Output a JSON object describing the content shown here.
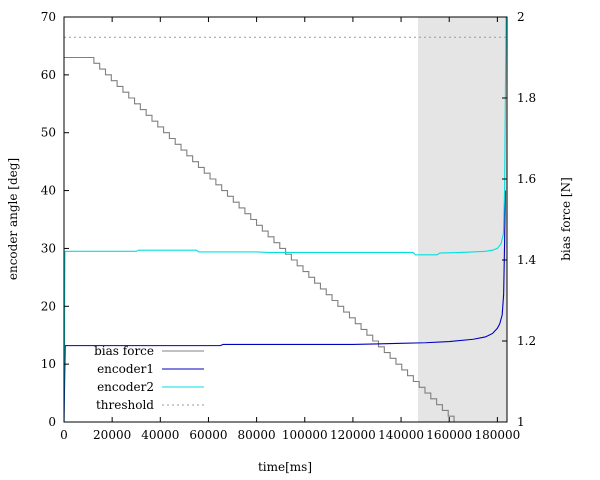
{
  "chart_data": {
    "type": "line",
    "title": "",
    "xlabel": "time[ms]",
    "ylabel_left": "encoder angle [deg]",
    "ylabel_right": "bias force [N]",
    "xlim": [
      0,
      184000
    ],
    "ylim_left": [
      0,
      70
    ],
    "ylim_right": [
      1,
      2
    ],
    "x_ticks": [
      0,
      20000,
      40000,
      60000,
      80000,
      100000,
      120000,
      140000,
      160000,
      180000
    ],
    "y_left_ticks": [
      0,
      10,
      20,
      30,
      40,
      50,
      60,
      70
    ],
    "y_right_ticks": [
      1,
      1.2,
      1.4,
      1.6,
      1.8,
      2
    ],
    "y_right_tick_labels": [
      "1",
      "1.2",
      "1.4",
      "1.6",
      "1.8",
      "2"
    ],
    "shaded_region": {
      "x": [
        147000,
        184000
      ],
      "color": "#e5e5e5"
    },
    "legend_position": "bottom-left",
    "series": [
      {
        "name": "bias force",
        "axis": "left",
        "color": "#808080",
        "style": "step",
        "x": [
          0,
          10000,
          162000
        ],
        "y": [
          63,
          63,
          0
        ]
      },
      {
        "name": "encoder1",
        "axis": "left",
        "color": "#0000c0",
        "style": "line",
        "x": [
          0,
          500,
          1000,
          65000,
          66000,
          120000,
          140000,
          150000,
          160000,
          170000,
          175000,
          178000,
          180000,
          181000,
          182000,
          182600,
          183000,
          183300
        ],
        "y": [
          0,
          13.2,
          13.2,
          13.2,
          13.4,
          13.4,
          13.6,
          13.7,
          13.9,
          14.3,
          14.7,
          15.3,
          16.2,
          17.0,
          18.5,
          22,
          31,
          40
        ]
      },
      {
        "name": "encoder2",
        "axis": "left",
        "color": "#00e0e0",
        "style": "line",
        "x": [
          0,
          400,
          1000,
          30000,
          31000,
          55000,
          56000,
          80000,
          85000,
          145000,
          146000,
          155000,
          156000,
          165000,
          170000,
          175000,
          178000,
          180000,
          181500,
          182500,
          183000,
          183300,
          183600
        ],
        "y": [
          0,
          29.5,
          29.5,
          29.5,
          29.7,
          29.7,
          29.4,
          29.4,
          29.3,
          29.3,
          28.9,
          28.9,
          29.2,
          29.3,
          29.4,
          29.5,
          29.7,
          30.0,
          30.8,
          32.5,
          40,
          55,
          70
        ]
      },
      {
        "name": "threshold",
        "axis": "left",
        "color": "#999999",
        "style": "dotted",
        "x": [
          0,
          184000
        ],
        "y": [
          66.5,
          66.5
        ]
      }
    ]
  }
}
